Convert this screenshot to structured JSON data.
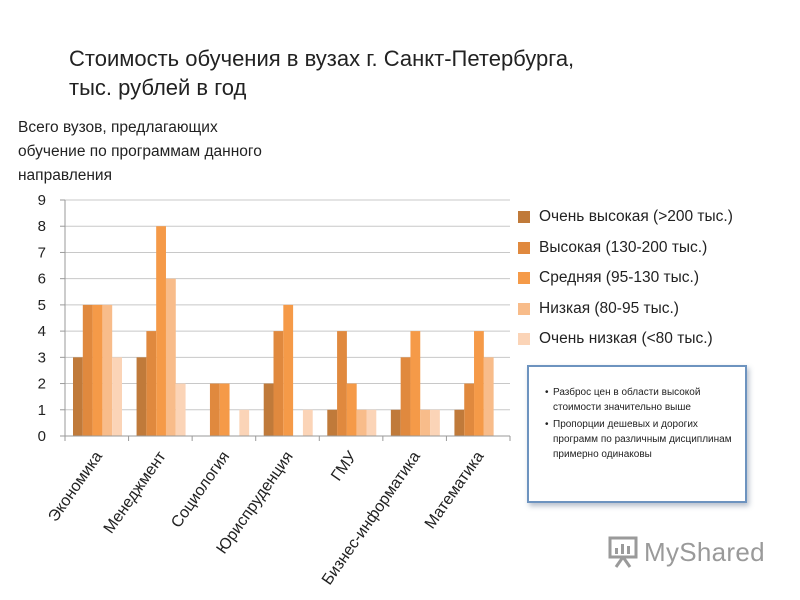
{
  "title_lines": [
    "Стоимость обучения в вузах г. Санкт-Петербурга,",
    "тыс. рублей в год"
  ],
  "ylabel_lines": [
    "Всего вузов, предлагающих",
    "обучение по программам данного",
    "направления"
  ],
  "note_items": [
    "Разброс цен в области высокой стоимости значительно выше",
    "Пропорции дешевых и дорогих программ  по различным дисциплинам примерно одинаковы"
  ],
  "watermark": {
    "text": "MyShared",
    "icon": "presentation-board-icon",
    "color": "#9a9a9a"
  },
  "colors": {
    "gridline": "#c8c8c8",
    "note_border": "#6d93bf"
  },
  "chart_data": {
    "type": "bar",
    "title": "Стоимость обучения в вузах г. Санкт-Петербурга, тыс. рублей в год",
    "ylabel": "Всего вузов, предлагающих обучение по программам данного направления",
    "xlabel": "",
    "categories": [
      "Экономика",
      "Менеджмент",
      "Социология",
      "Юриспруденция",
      "ГМУ",
      "Бизнес-информатика",
      "Математика"
    ],
    "ylim": [
      0,
      9
    ],
    "yticks": [
      "0",
      "1",
      "2",
      "3",
      "4",
      "5",
      "6",
      "7",
      "8",
      "9"
    ],
    "grid": true,
    "legend_position": "right",
    "series": [
      {
        "name": "Очень высокая (>200 тыс.)",
        "color": "#c07a3a",
        "values": [
          3,
          3,
          0,
          2,
          1,
          1,
          1
        ]
      },
      {
        "name": "Высокая (130-200 тыс.)",
        "color": "#e0893e",
        "values": [
          5,
          4,
          2,
          4,
          4,
          3,
          2
        ]
      },
      {
        "name": "Средняя (95-130 тыс.)",
        "color": "#f59a48",
        "values": [
          5,
          8,
          2,
          5,
          2,
          4,
          4
        ]
      },
      {
        "name": "Низкая (80-95 тыс.)",
        "color": "#f8bc8a",
        "values": [
          5,
          6,
          0,
          0,
          1,
          1,
          3
        ]
      },
      {
        "name": "Очень низкая (<80 тыс.)",
        "color": "#fbd4b7",
        "values": [
          3,
          2,
          1,
          1,
          1,
          1,
          0
        ]
      }
    ]
  }
}
